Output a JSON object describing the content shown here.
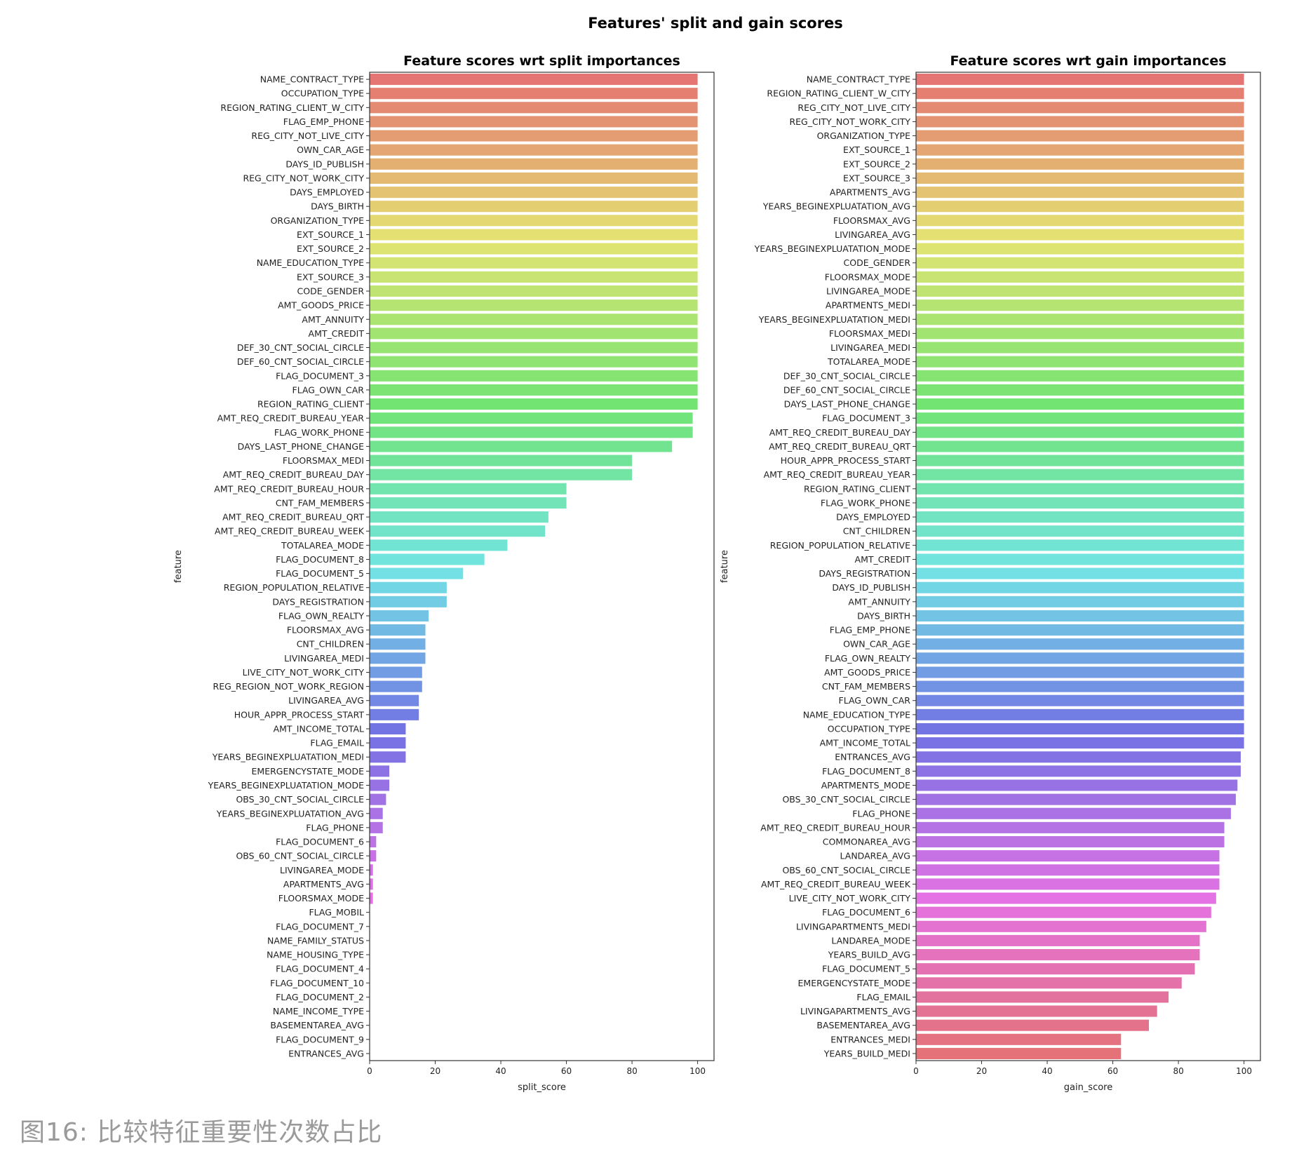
{
  "figure": {
    "title": "Features' split and gain scores",
    "caption": "图16: 比较特征重要性次数占比"
  },
  "chart_data": [
    {
      "type": "bar",
      "orientation": "horizontal",
      "title": "Feature scores wrt split importances",
      "xlabel": "split_score",
      "ylabel": "feature",
      "xlim": [
        0,
        105
      ],
      "xticks": [
        0,
        20,
        40,
        60,
        80,
        100
      ],
      "palette": "seaborn husl, top to bottom",
      "categories": [
        "NAME_CONTRACT_TYPE",
        "OCCUPATION_TYPE",
        "REGION_RATING_CLIENT_W_CITY",
        "FLAG_EMP_PHONE",
        "REG_CITY_NOT_LIVE_CITY",
        "OWN_CAR_AGE",
        "DAYS_ID_PUBLISH",
        "REG_CITY_NOT_WORK_CITY",
        "DAYS_EMPLOYED",
        "DAYS_BIRTH",
        "ORGANIZATION_TYPE",
        "EXT_SOURCE_1",
        "EXT_SOURCE_2",
        "NAME_EDUCATION_TYPE",
        "EXT_SOURCE_3",
        "CODE_GENDER",
        "AMT_GOODS_PRICE",
        "AMT_ANNUITY",
        "AMT_CREDIT",
        "DEF_30_CNT_SOCIAL_CIRCLE",
        "DEF_60_CNT_SOCIAL_CIRCLE",
        "FLAG_DOCUMENT_3",
        "FLAG_OWN_CAR",
        "REGION_RATING_CLIENT",
        "AMT_REQ_CREDIT_BUREAU_YEAR",
        "FLAG_WORK_PHONE",
        "DAYS_LAST_PHONE_CHANGE",
        "FLOORSMAX_MEDI",
        "AMT_REQ_CREDIT_BUREAU_DAY",
        "AMT_REQ_CREDIT_BUREAU_HOUR",
        "CNT_FAM_MEMBERS",
        "AMT_REQ_CREDIT_BUREAU_QRT",
        "AMT_REQ_CREDIT_BUREAU_WEEK",
        "TOTALAREA_MODE",
        "FLAG_DOCUMENT_8",
        "FLAG_DOCUMENT_5",
        "REGION_POPULATION_RELATIVE",
        "DAYS_REGISTRATION",
        "FLAG_OWN_REALTY",
        "FLOORSMAX_AVG",
        "CNT_CHILDREN",
        "LIVINGAREA_MEDI",
        "LIVE_CITY_NOT_WORK_CITY",
        "REG_REGION_NOT_WORK_REGION",
        "LIVINGAREA_AVG",
        "HOUR_APPR_PROCESS_START",
        "AMT_INCOME_TOTAL",
        "FLAG_EMAIL",
        "YEARS_BEGINEXPLUATATION_MEDI",
        "EMERGENCYSTATE_MODE",
        "YEARS_BEGINEXPLUATATION_MODE",
        "OBS_30_CNT_SOCIAL_CIRCLE",
        "YEARS_BEGINEXPLUATATION_AVG",
        "FLAG_PHONE",
        "FLAG_DOCUMENT_6",
        "OBS_60_CNT_SOCIAL_CIRCLE",
        "LIVINGAREA_MODE",
        "APARTMENTS_AVG",
        "FLOORSMAX_MODE",
        "FLAG_MOBIL",
        "FLAG_DOCUMENT_7",
        "NAME_FAMILY_STATUS",
        "NAME_HOUSING_TYPE",
        "FLAG_DOCUMENT_4",
        "FLAG_DOCUMENT_10",
        "FLAG_DOCUMENT_2",
        "NAME_INCOME_TYPE",
        "BASEMENTAREA_AVG",
        "FLAG_DOCUMENT_9",
        "ENTRANCES_AVG"
      ],
      "values": [
        100,
        100,
        100,
        100,
        100,
        100,
        100,
        100,
        100,
        100,
        100,
        100,
        100,
        100,
        100,
        100,
        100,
        100,
        100,
        100,
        100,
        100,
        100,
        100,
        98.5,
        98.5,
        92.2,
        80,
        80,
        60,
        60,
        54.5,
        53.5,
        42,
        35,
        28.5,
        23.5,
        23.5,
        18,
        17,
        17,
        17,
        16,
        16,
        15,
        15,
        11,
        11,
        11,
        6,
        6,
        5,
        4,
        4,
        2,
        2,
        1,
        1,
        1,
        0,
        0,
        0,
        0,
        0,
        0,
        0,
        0,
        0,
        0,
        0
      ]
    },
    {
      "type": "bar",
      "orientation": "horizontal",
      "title": "Feature scores wrt gain importances",
      "xlabel": "gain_score",
      "ylabel": "feature",
      "xlim": [
        0,
        105
      ],
      "xticks": [
        0,
        20,
        40,
        60,
        80,
        100
      ],
      "palette": "seaborn husl, top to bottom",
      "categories": [
        "NAME_CONTRACT_TYPE",
        "REGION_RATING_CLIENT_W_CITY",
        "REG_CITY_NOT_LIVE_CITY",
        "REG_CITY_NOT_WORK_CITY",
        "ORGANIZATION_TYPE",
        "EXT_SOURCE_1",
        "EXT_SOURCE_2",
        "EXT_SOURCE_3",
        "APARTMENTS_AVG",
        "YEARS_BEGINEXPLUATATION_AVG",
        "FLOORSMAX_AVG",
        "LIVINGAREA_AVG",
        "YEARS_BEGINEXPLUATATION_MODE",
        "CODE_GENDER",
        "FLOORSMAX_MODE",
        "LIVINGAREA_MODE",
        "APARTMENTS_MEDI",
        "YEARS_BEGINEXPLUATATION_MEDI",
        "FLOORSMAX_MEDI",
        "LIVINGAREA_MEDI",
        "TOTALAREA_MODE",
        "DEF_30_CNT_SOCIAL_CIRCLE",
        "DEF_60_CNT_SOCIAL_CIRCLE",
        "DAYS_LAST_PHONE_CHANGE",
        "FLAG_DOCUMENT_3",
        "AMT_REQ_CREDIT_BUREAU_DAY",
        "AMT_REQ_CREDIT_BUREAU_QRT",
        "HOUR_APPR_PROCESS_START",
        "AMT_REQ_CREDIT_BUREAU_YEAR",
        "REGION_RATING_CLIENT",
        "FLAG_WORK_PHONE",
        "DAYS_EMPLOYED",
        "CNT_CHILDREN",
        "REGION_POPULATION_RELATIVE",
        "AMT_CREDIT",
        "DAYS_REGISTRATION",
        "DAYS_ID_PUBLISH",
        "AMT_ANNUITY",
        "DAYS_BIRTH",
        "FLAG_EMP_PHONE",
        "OWN_CAR_AGE",
        "FLAG_OWN_REALTY",
        "AMT_GOODS_PRICE",
        "CNT_FAM_MEMBERS",
        "FLAG_OWN_CAR",
        "NAME_EDUCATION_TYPE",
        "OCCUPATION_TYPE",
        "AMT_INCOME_TOTAL",
        "ENTRANCES_AVG",
        "FLAG_DOCUMENT_8",
        "APARTMENTS_MODE",
        "OBS_30_CNT_SOCIAL_CIRCLE",
        "FLAG_PHONE",
        "AMT_REQ_CREDIT_BUREAU_HOUR",
        "COMMONAREA_AVG",
        "LANDAREA_AVG",
        "OBS_60_CNT_SOCIAL_CIRCLE",
        "AMT_REQ_CREDIT_BUREAU_WEEK",
        "LIVE_CITY_NOT_WORK_CITY",
        "FLAG_DOCUMENT_6",
        "LIVINGAPARTMENTS_MEDI",
        "LANDAREA_MODE",
        "YEARS_BUILD_AVG",
        "FLAG_DOCUMENT_5",
        "EMERGENCYSTATE_MODE",
        "FLAG_EMAIL",
        "LIVINGAPARTMENTS_AVG",
        "BASEMENTAREA_AVG",
        "ENTRANCES_MEDI",
        "YEARS_BUILD_MEDI"
      ],
      "values": [
        100,
        100,
        100,
        100,
        100,
        100,
        100,
        100,
        100,
        100,
        100,
        100,
        100,
        100,
        100,
        100,
        100,
        100,
        100,
        100,
        100,
        100,
        100,
        100,
        100,
        100,
        100,
        100,
        100,
        100,
        100,
        100,
        100,
        100,
        100,
        100,
        100,
        100,
        100,
        100,
        100,
        100,
        100,
        100,
        100,
        100,
        100,
        100,
        99,
        99,
        98,
        97.5,
        96,
        94,
        94,
        92.5,
        92.5,
        92.5,
        91.5,
        90,
        88.5,
        86.5,
        86.5,
        85,
        81,
        77,
        73.5,
        71,
        62.5,
        62.5
      ]
    }
  ]
}
